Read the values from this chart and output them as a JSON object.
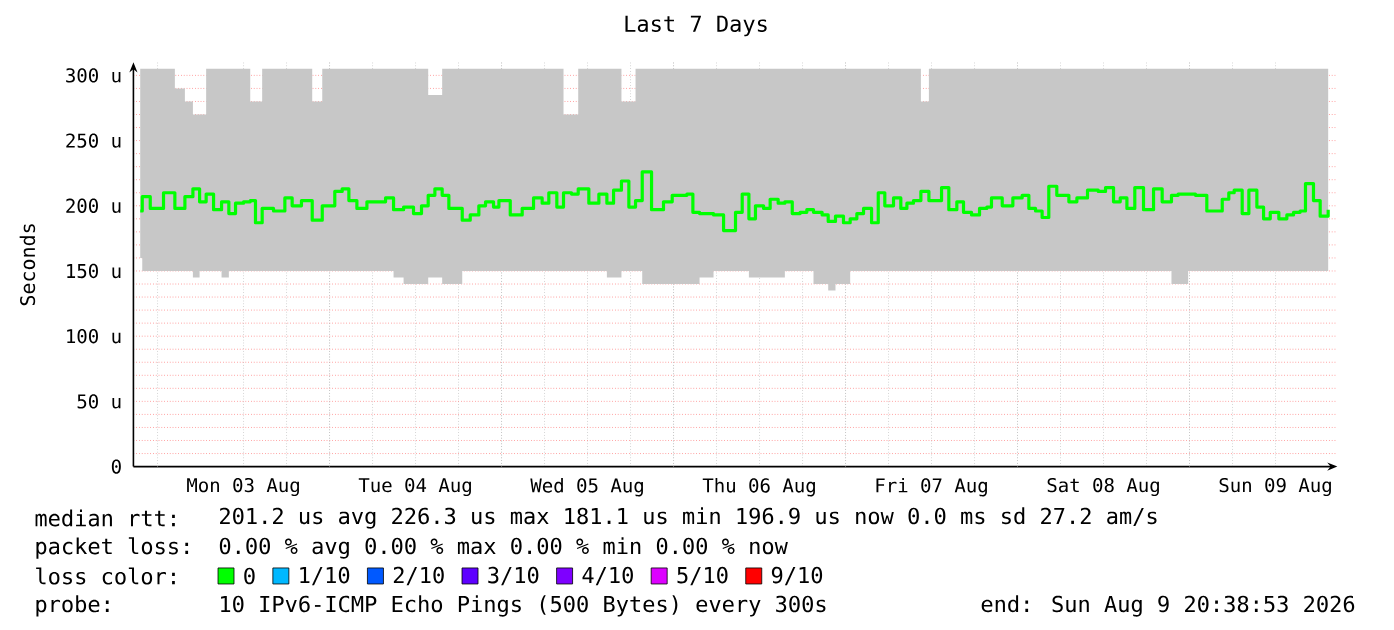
{
  "chart_data": {
    "type": "step",
    "title": "Last 7 Days",
    "ylabel": "Seconds",
    "xlim": [
      "2026-08-02T20:38",
      "2026-08-09T20:38"
    ],
    "ylim": [
      0,
      310
    ],
    "xticks": [
      {
        "value": "2026-08-03T00:00",
        "label": null
      },
      {
        "value": "2026-08-03T12:00",
        "label": "Mon 03 Aug"
      },
      {
        "value": "2026-08-04T00:00",
        "label": null
      },
      {
        "value": "2026-08-04T12:00",
        "label": "Tue 04 Aug"
      },
      {
        "value": "2026-08-05T00:00",
        "label": null
      },
      {
        "value": "2026-08-05T12:00",
        "label": "Wed 05 Aug"
      },
      {
        "value": "2026-08-06T00:00",
        "label": null
      },
      {
        "value": "2026-08-06T12:00",
        "label": "Thu 06 Aug"
      },
      {
        "value": "2026-08-07T00:00",
        "label": null
      },
      {
        "value": "2026-08-07T12:00",
        "label": "Fri 07 Aug"
      },
      {
        "value": "2026-08-08T00:00",
        "label": null
      },
      {
        "value": "2026-08-08T12:00",
        "label": "Sat 08 Aug"
      },
      {
        "value": "2026-08-09T00:00",
        "label": null
      },
      {
        "value": "2026-08-09T12:00",
        "label": "Sun 09 Aug"
      }
    ],
    "yticks": [
      0,
      {
        "value": 50,
        "label": "50 u"
      },
      {
        "value": 100,
        "label": "100 u"
      },
      {
        "value": 150,
        "label": "150 u"
      },
      {
        "value": 200,
        "label": "200 u"
      },
      {
        "value": 250,
        "label": "250 u"
      },
      {
        "value": 300,
        "label": "300 u"
      }
    ],
    "grid": true,
    "legend": "bottom",
    "legend_title": "loss color:",
    "x": [
      "2026-08-02T21:35",
      "2026-08-02T21:52",
      "2026-08-02T22:59",
      "2026-08-03T00:50",
      "2026-08-03T02:25",
      "2026-08-03T03:49",
      "2026-08-03T04:56",
      "2026-08-03T05:52",
      "2026-08-03T06:47",
      "2026-08-03T07:49",
      "2026-08-03T08:56",
      "2026-08-03T09:57",
      "2026-08-03T10:53",
      "2026-08-03T12:00",
      "2026-08-03T12:56",
      "2026-08-03T13:40",
      "2026-08-03T14:36",
      "2026-08-03T16:11",
      "2026-08-03T17:46",
      "2026-08-03T18:47",
      "2026-08-03T20:05",
      "2026-08-03T21:35",
      "2026-08-03T22:59",
      "2026-08-04T00:44",
      "2026-08-04T01:46",
      "2026-08-04T02:42",
      "2026-08-04T03:49",
      "2026-08-04T05:13",
      "2026-08-04T07:49",
      "2026-08-04T08:56",
      "2026-08-04T10:20",
      "2026-08-04T11:43",
      "2026-08-04T12:50",
      "2026-08-04T13:46",
      "2026-08-04T14:42",
      "2026-08-04T15:43",
      "2026-08-04T16:39",
      "2026-08-04T18:31",
      "2026-08-04T19:38",
      "2026-08-04T20:50",
      "2026-08-04T21:46",
      "2026-08-04T22:53",
      "2026-08-04T23:38",
      "2026-08-05T01:13",
      "2026-08-05T02:53",
      "2026-08-05T04:28",
      "2026-08-05T05:40",
      "2026-08-05T06:36",
      "2026-08-05T07:43",
      "2026-08-05T08:39",
      "2026-08-05T09:46",
      "2026-08-05T10:42",
      "2026-08-05T12:11",
      "2026-08-05T13:35",
      "2026-08-05T14:42",
      "2026-08-05T15:38",
      "2026-08-05T16:44",
      "2026-08-05T17:46",
      "2026-08-05T18:42",
      "2026-08-05T19:38",
      "2026-08-05T20:56",
      "2026-08-05T22:36",
      "2026-08-05T23:49",
      "2026-08-06T01:52",
      "2026-08-06T02:42",
      "2026-08-06T03:38",
      "2026-08-06T05:35",
      "2026-08-06T06:59",
      "2026-08-06T08:39",
      "2026-08-06T09:35",
      "2026-08-06T10:31",
      "2026-08-06T11:26",
      "2026-08-06T12:34",
      "2026-08-06T13:29",
      "2026-08-06T14:36",
      "2026-08-06T15:32",
      "2026-08-06T16:34",
      "2026-08-06T17:40",
      "2026-08-06T18:36",
      "2026-08-06T19:32",
      "2026-08-06T20:44",
      "2026-08-06T21:35",
      "2026-08-06T22:36",
      "2026-08-06T23:43",
      "2026-08-07T00:39",
      "2026-08-07T01:35",
      "2026-08-07T02:31",
      "2026-08-07T03:38",
      "2026-08-07T04:34",
      "2026-08-07T05:29",
      "2026-08-07T06:42",
      "2026-08-07T07:43",
      "2026-08-07T08:34",
      "2026-08-07T09:29",
      "2026-08-07T10:31",
      "2026-08-07T11:38",
      "2026-08-07T12:34",
      "2026-08-07T13:24",
      "2026-08-07T14:25",
      "2026-08-07T15:32",
      "2026-08-07T16:28",
      "2026-08-07T17:35",
      "2026-08-07T18:42",
      "2026-08-07T19:43",
      "2026-08-07T20:22",
      "2026-08-07T21:52",
      "2026-08-07T23:21",
      "2026-08-08T00:39",
      "2026-08-08T01:35",
      "2026-08-08T02:31",
      "2026-08-08T03:26",
      "2026-08-08T04:22",
      "2026-08-08T05:29",
      "2026-08-08T07:10",
      "2026-08-08T08:17",
      "2026-08-08T09:46",
      "2026-08-08T11:16",
      "2026-08-08T12:17",
      "2026-08-08T13:24",
      "2026-08-08T14:20",
      "2026-08-08T15:16",
      "2026-08-08T16:22",
      "2026-08-08T17:35",
      "2026-08-08T18:59",
      "2026-08-08T20:11",
      "2026-08-08T21:29",
      "2026-08-08T22:25",
      "2026-08-08T23:49",
      "2026-08-09T00:50",
      "2026-08-09T02:25",
      "2026-08-09T03:21",
      "2026-08-09T04:34",
      "2026-08-09T05:29",
      "2026-08-09T06:14",
      "2026-08-09T07:21",
      "2026-08-09T08:17",
      "2026-08-09T09:24",
      "2026-08-09T10:20",
      "2026-08-09T11:16",
      "2026-08-09T12:28",
      "2026-08-09T13:35",
      "2026-08-09T14:31",
      "2026-08-09T15:26",
      "2026-08-09T16:11",
      "2026-08-09T17:18",
      "2026-08-09T18:14",
      "2026-08-09T19:21"
    ],
    "series": [
      {
        "name": "0",
        "color": "#00ff00",
        "values": [
          196,
          207,
          198,
          210,
          198,
          207,
          213,
          203,
          209,
          197,
          203,
          194,
          202,
          203,
          204,
          187,
          198,
          196,
          206,
          200,
          204,
          189,
          200,
          211,
          213,
          204,
          198,
          203,
          206,
          197,
          199,
          194,
          200,
          208,
          213,
          208,
          198,
          189,
          193,
          200,
          203,
          199,
          204,
          193,
          198,
          206,
          202,
          210,
          199,
          210,
          209,
          213,
          202,
          209,
          202,
          212,
          219,
          199,
          204,
          226,
          197,
          203,
          208,
          209,
          195,
          194,
          193,
          181,
          195,
          209,
          190,
          200,
          198,
          205,
          202,
          203,
          194,
          195,
          197,
          195,
          193,
          188,
          192,
          187,
          190,
          194,
          198,
          187,
          210,
          200,
          206,
          198,
          202,
          204,
          211,
          204,
          204,
          214,
          197,
          203,
          195,
          193,
          198,
          199,
          206,
          200,
          206,
          208,
          198,
          196,
          191,
          215,
          208,
          203,
          206,
          212,
          211,
          214,
          203,
          206,
          198,
          214,
          197,
          213,
          203,
          208,
          209,
          209,
          208,
          196,
          196,
          205,
          210,
          212,
          194,
          212,
          199,
          190,
          195,
          190,
          193,
          195,
          196,
          217,
          204,
          192,
          197
        ],
        "upper": [
          305,
          305,
          305,
          305,
          290,
          280,
          270,
          270,
          305,
          305,
          305,
          305,
          305,
          305,
          280,
          280,
          305,
          305,
          305,
          305,
          305,
          280,
          305,
          305,
          305,
          305,
          305,
          305,
          305,
          305,
          305,
          305,
          305,
          285,
          285,
          305,
          305,
          305,
          305,
          305,
          305,
          305,
          305,
          305,
          305,
          305,
          305,
          305,
          305,
          270,
          270,
          305,
          305,
          305,
          305,
          305,
          280,
          280,
          305,
          305,
          305,
          305,
          305,
          305,
          305,
          305,
          305,
          305,
          305,
          305,
          305,
          305,
          305,
          305,
          305,
          305,
          305,
          305,
          305,
          305,
          305,
          305,
          305,
          305,
          305,
          305,
          305,
          305,
          305,
          305,
          305,
          305,
          305,
          305,
          280,
          305,
          305,
          305,
          305,
          305,
          305,
          305,
          305,
          305,
          305,
          305,
          305,
          305,
          305,
          305,
          305,
          305,
          305,
          305,
          305,
          305,
          305,
          305,
          305,
          305,
          305,
          305,
          305,
          305,
          305,
          305,
          305,
          305,
          305,
          305,
          305,
          305,
          305,
          305,
          305,
          305,
          305,
          305,
          305,
          305,
          305,
          305,
          305,
          305,
          305,
          305,
          305
        ],
        "lower": [
          160,
          160,
          150,
          150,
          150,
          150,
          150,
          145,
          150,
          150,
          150,
          145,
          150,
          150,
          150,
          150,
          150,
          150,
          150,
          150,
          150,
          150,
          150,
          150,
          150,
          150,
          150,
          150,
          150,
          150,
          145,
          140,
          140,
          140,
          145,
          145,
          140,
          140,
          150,
          150,
          150,
          150,
          150,
          150,
          150,
          150,
          150,
          150,
          150,
          150,
          150,
          150,
          150,
          150,
          150,
          145,
          145,
          150,
          150,
          150,
          140,
          140,
          140,
          140,
          140,
          140,
          145,
          150,
          150,
          150,
          150,
          145,
          145,
          145,
          145,
          145,
          150,
          150,
          150,
          150,
          140,
          140,
          135,
          140,
          140,
          150,
          150,
          150,
          150,
          150,
          150,
          150,
          150,
          150,
          150,
          150,
          150,
          150,
          150,
          150,
          150,
          150,
          150,
          150,
          150,
          150,
          150,
          150,
          150,
          150,
          150,
          150,
          150,
          150,
          150,
          150,
          150,
          150,
          150,
          150,
          150,
          150,
          150,
          150,
          150,
          150,
          140,
          140,
          150,
          150,
          150,
          150,
          150,
          150,
          150,
          150,
          150,
          150,
          150,
          150,
          150,
          150,
          150,
          150,
          150,
          150,
          150
        ]
      },
      {
        "name": "1/10",
        "color": "#00b8ff",
        "values": [
          null,
          null,
          null,
          null,
          null,
          null,
          null,
          null,
          null,
          null,
          null,
          null,
          null,
          null,
          null,
          null,
          null,
          null,
          null,
          null,
          null,
          null,
          null,
          null,
          null,
          null,
          null,
          null,
          null,
          null,
          null,
          null,
          null,
          null,
          null,
          null,
          null,
          null,
          null,
          null,
          null,
          null,
          null,
          null,
          null,
          null,
          null,
          null,
          null,
          null,
          null,
          null,
          null,
          null,
          null,
          null,
          null,
          null,
          null,
          null,
          null,
          null,
          null,
          null,
          null,
          null,
          null,
          null,
          null,
          null,
          null,
          null,
          null,
          null,
          null,
          null,
          null,
          null,
          null,
          null,
          null,
          null,
          null,
          null,
          null,
          null,
          null,
          null,
          null,
          null,
          null,
          null,
          null,
          null,
          null,
          null,
          null,
          null,
          null,
          null,
          null,
          null,
          null,
          null,
          null,
          null,
          null,
          null,
          null,
          null,
          null,
          null,
          null,
          null,
          null,
          null,
          null,
          null,
          null,
          null,
          null,
          null,
          null,
          null,
          null,
          null,
          null,
          null,
          null,
          null,
          null,
          null,
          null,
          null,
          null,
          null,
          null,
          null,
          null,
          null,
          null,
          null,
          null,
          null,
          null,
          null,
          null
        ]
      },
      {
        "name": "2/10",
        "color": "#0059ff",
        "values": [
          null,
          null,
          null,
          null,
          null,
          null,
          null,
          null,
          null,
          null,
          null,
          null,
          null,
          null,
          null,
          null,
          null,
          null,
          null,
          null,
          null,
          null,
          null,
          null,
          null,
          null,
          null,
          null,
          null,
          null,
          null,
          null,
          null,
          null,
          null,
          null,
          null,
          null,
          null,
          null,
          null,
          null,
          null,
          null,
          null,
          null,
          null,
          null,
          null,
          null,
          null,
          null,
          null,
          null,
          null,
          null,
          null,
          null,
          null,
          null,
          null,
          null,
          null,
          null,
          null,
          null,
          null,
          null,
          null,
          null,
          null,
          null,
          null,
          null,
          null,
          null,
          null,
          null,
          null,
          null,
          null,
          null,
          null,
          null,
          null,
          null,
          null,
          null,
          null,
          null,
          null,
          null,
          null,
          null,
          null,
          null,
          null,
          null,
          null,
          null,
          null,
          null,
          null,
          null,
          null,
          null,
          null,
          null,
          null,
          null,
          null,
          null,
          null,
          null,
          null,
          null,
          null,
          null,
          null,
          null,
          null,
          null,
          null,
          null,
          null,
          null,
          null,
          null,
          null,
          null,
          null,
          null,
          null,
          null,
          null,
          null,
          null,
          null,
          null,
          null,
          null,
          null,
          null,
          null,
          null,
          null,
          null
        ]
      },
      {
        "name": "3/10",
        "color": "#5e00ff",
        "values": [
          null,
          null,
          null,
          null,
          null,
          null,
          null,
          null,
          null,
          null,
          null,
          null,
          null,
          null,
          null,
          null,
          null,
          null,
          null,
          null,
          null,
          null,
          null,
          null,
          null,
          null,
          null,
          null,
          null,
          null,
          null,
          null,
          null,
          null,
          null,
          null,
          null,
          null,
          null,
          null,
          null,
          null,
          null,
          null,
          null,
          null,
          null,
          null,
          null,
          null,
          null,
          null,
          null,
          null,
          null,
          null,
          null,
          null,
          null,
          null,
          null,
          null,
          null,
          null,
          null,
          null,
          null,
          null,
          null,
          null,
          null,
          null,
          null,
          null,
          null,
          null,
          null,
          null,
          null,
          null,
          null,
          null,
          null,
          null,
          null,
          null,
          null,
          null,
          null,
          null,
          null,
          null,
          null,
          null,
          null,
          null,
          null,
          null,
          null,
          null,
          null,
          null,
          null,
          null,
          null,
          null,
          null,
          null,
          null,
          null,
          null,
          null,
          null,
          null,
          null,
          null,
          null,
          null,
          null,
          null,
          null,
          null,
          null,
          null,
          null,
          null,
          null,
          null,
          null,
          null,
          null,
          null,
          null,
          null,
          null,
          null,
          null,
          null,
          null,
          null,
          null,
          null,
          null,
          null,
          null,
          null,
          null
        ]
      },
      {
        "name": "4/10",
        "color": "#7e00ff",
        "values": [
          null,
          null,
          null,
          null,
          null,
          null,
          null,
          null,
          null,
          null,
          null,
          null,
          null,
          null,
          null,
          null,
          null,
          null,
          null,
          null,
          null,
          null,
          null,
          null,
          null,
          null,
          null,
          null,
          null,
          null,
          null,
          null,
          null,
          null,
          null,
          null,
          null,
          null,
          null,
          null,
          null,
          null,
          null,
          null,
          null,
          null,
          null,
          null,
          null,
          null,
          null,
          null,
          null,
          null,
          null,
          null,
          null,
          null,
          null,
          null,
          null,
          null,
          null,
          null,
          null,
          null,
          null,
          null,
          null,
          null,
          null,
          null,
          null,
          null,
          null,
          null,
          null,
          null,
          null,
          null,
          null,
          null,
          null,
          null,
          null,
          null,
          null,
          null,
          null,
          null,
          null,
          null,
          null,
          null,
          null,
          null,
          null,
          null,
          null,
          null,
          null,
          null,
          null,
          null,
          null,
          null,
          null,
          null,
          null,
          null,
          null,
          null,
          null,
          null,
          null,
          null,
          null,
          null,
          null,
          null,
          null,
          null,
          null,
          null,
          null,
          null,
          null,
          null,
          null,
          null,
          null,
          null,
          null,
          null,
          null,
          null,
          null,
          null,
          null,
          null,
          null,
          null,
          null,
          null,
          null,
          null,
          null
        ]
      },
      {
        "name": "5/10",
        "color": "#dd00ff",
        "values": [
          null,
          null,
          null,
          null,
          null,
          null,
          null,
          null,
          null,
          null,
          null,
          null,
          null,
          null,
          null,
          null,
          null,
          null,
          null,
          null,
          null,
          null,
          null,
          null,
          null,
          null,
          null,
          null,
          null,
          null,
          null,
          null,
          null,
          null,
          null,
          null,
          null,
          null,
          null,
          null,
          null,
          null,
          null,
          null,
          null,
          null,
          null,
          null,
          null,
          null,
          null,
          null,
          null,
          null,
          null,
          null,
          null,
          null,
          null,
          null,
          null,
          null,
          null,
          null,
          null,
          null,
          null,
          null,
          null,
          null,
          null,
          null,
          null,
          null,
          null,
          null,
          null,
          null,
          null,
          null,
          null,
          null,
          null,
          null,
          null,
          null,
          null,
          null,
          null,
          null,
          null,
          null,
          null,
          null,
          null,
          null,
          null,
          null,
          null,
          null,
          null,
          null,
          null,
          null,
          null,
          null,
          null,
          null,
          null,
          null,
          null,
          null,
          null,
          null,
          null,
          null,
          null,
          null,
          null,
          null,
          null,
          null,
          null,
          null,
          null,
          null,
          null,
          null,
          null,
          null,
          null,
          null,
          null,
          null,
          null,
          null,
          null,
          null,
          null,
          null,
          null,
          null,
          null,
          null,
          null,
          null,
          null
        ]
      },
      {
        "name": "9/10",
        "color": "#ff0000",
        "values": [
          null,
          null,
          null,
          null,
          null,
          null,
          null,
          null,
          null,
          null,
          null,
          null,
          null,
          null,
          null,
          null,
          null,
          null,
          null,
          null,
          null,
          null,
          null,
          null,
          null,
          null,
          null,
          null,
          null,
          null,
          null,
          null,
          null,
          null,
          null,
          null,
          null,
          null,
          null,
          null,
          null,
          null,
          null,
          null,
          null,
          null,
          null,
          null,
          null,
          null,
          null,
          null,
          null,
          null,
          null,
          null,
          null,
          null,
          null,
          null,
          null,
          null,
          null,
          null,
          null,
          null,
          null,
          null,
          null,
          null,
          null,
          null,
          null,
          null,
          null,
          null,
          null,
          null,
          null,
          null,
          null,
          null,
          null,
          null,
          null,
          null,
          null,
          null,
          null,
          null,
          null,
          null,
          null,
          null,
          null,
          null,
          null,
          null,
          null,
          null,
          null,
          null,
          null,
          null,
          null,
          null,
          null,
          null,
          null,
          null,
          null,
          null,
          null,
          null,
          null,
          null,
          null,
          null,
          null,
          null,
          null,
          null,
          null,
          null,
          null,
          null,
          null,
          null,
          null,
          null,
          null,
          null,
          null,
          null,
          null,
          null,
          null,
          null,
          null,
          null,
          null,
          null,
          null,
          null,
          null,
          null,
          null
        ]
      }
    ],
    "annotations": [
      "median rtt:",
      "201.2 us avg 226.3 us max 181.1 us min 196.9 us now 0.0 ms sd 27.2 am/s",
      "packet loss:",
      "0.00 % avg 0.00 % max 0.00 % min 0.00 % now",
      "probe:",
      "10 IPv6-ICMP Echo Pings (500 Bytes) every 300s",
      "end: Sun Aug 9 20:38:53 2026"
    ]
  }
}
